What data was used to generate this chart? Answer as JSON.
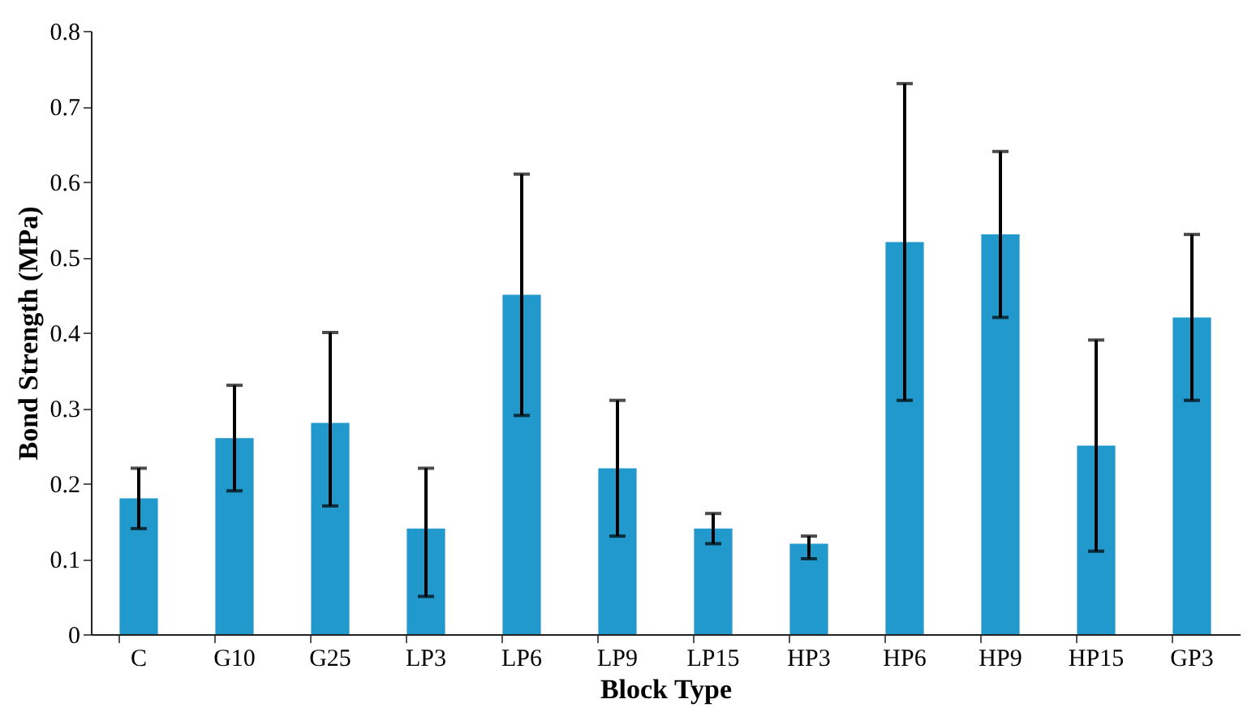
{
  "chart_data": {
    "type": "bar",
    "xlabel": "Block Type",
    "ylabel": "Bond Strength (MPa)",
    "categories": [
      "C",
      "G10",
      "G25",
      "LP3",
      "LP6",
      "LP9",
      "LP15",
      "HP3",
      "HP6",
      "HP9",
      "HP15",
      "GP3"
    ],
    "values": [
      0.18,
      0.26,
      0.28,
      0.14,
      0.45,
      0.22,
      0.14,
      0.12,
      0.52,
      0.53,
      0.25,
      0.42
    ],
    "errors": [
      [
        0.14,
        0.22
      ],
      [
        0.19,
        0.33
      ],
      [
        0.17,
        0.4
      ],
      [
        0.05,
        0.22
      ],
      [
        0.29,
        0.61
      ],
      [
        0.13,
        0.31
      ],
      [
        0.12,
        0.16
      ],
      [
        0.1,
        0.13
      ],
      [
        0.31,
        0.73
      ],
      [
        0.42,
        0.64
      ],
      [
        0.11,
        0.39
      ],
      [
        0.31,
        0.53
      ]
    ],
    "color": "#2199cc",
    "ylim": [
      0,
      0.8
    ],
    "yticks": [
      0,
      0.1,
      0.2,
      0.3,
      0.4,
      0.5,
      0.6,
      0.7,
      0.8
    ],
    "grid": false
  }
}
